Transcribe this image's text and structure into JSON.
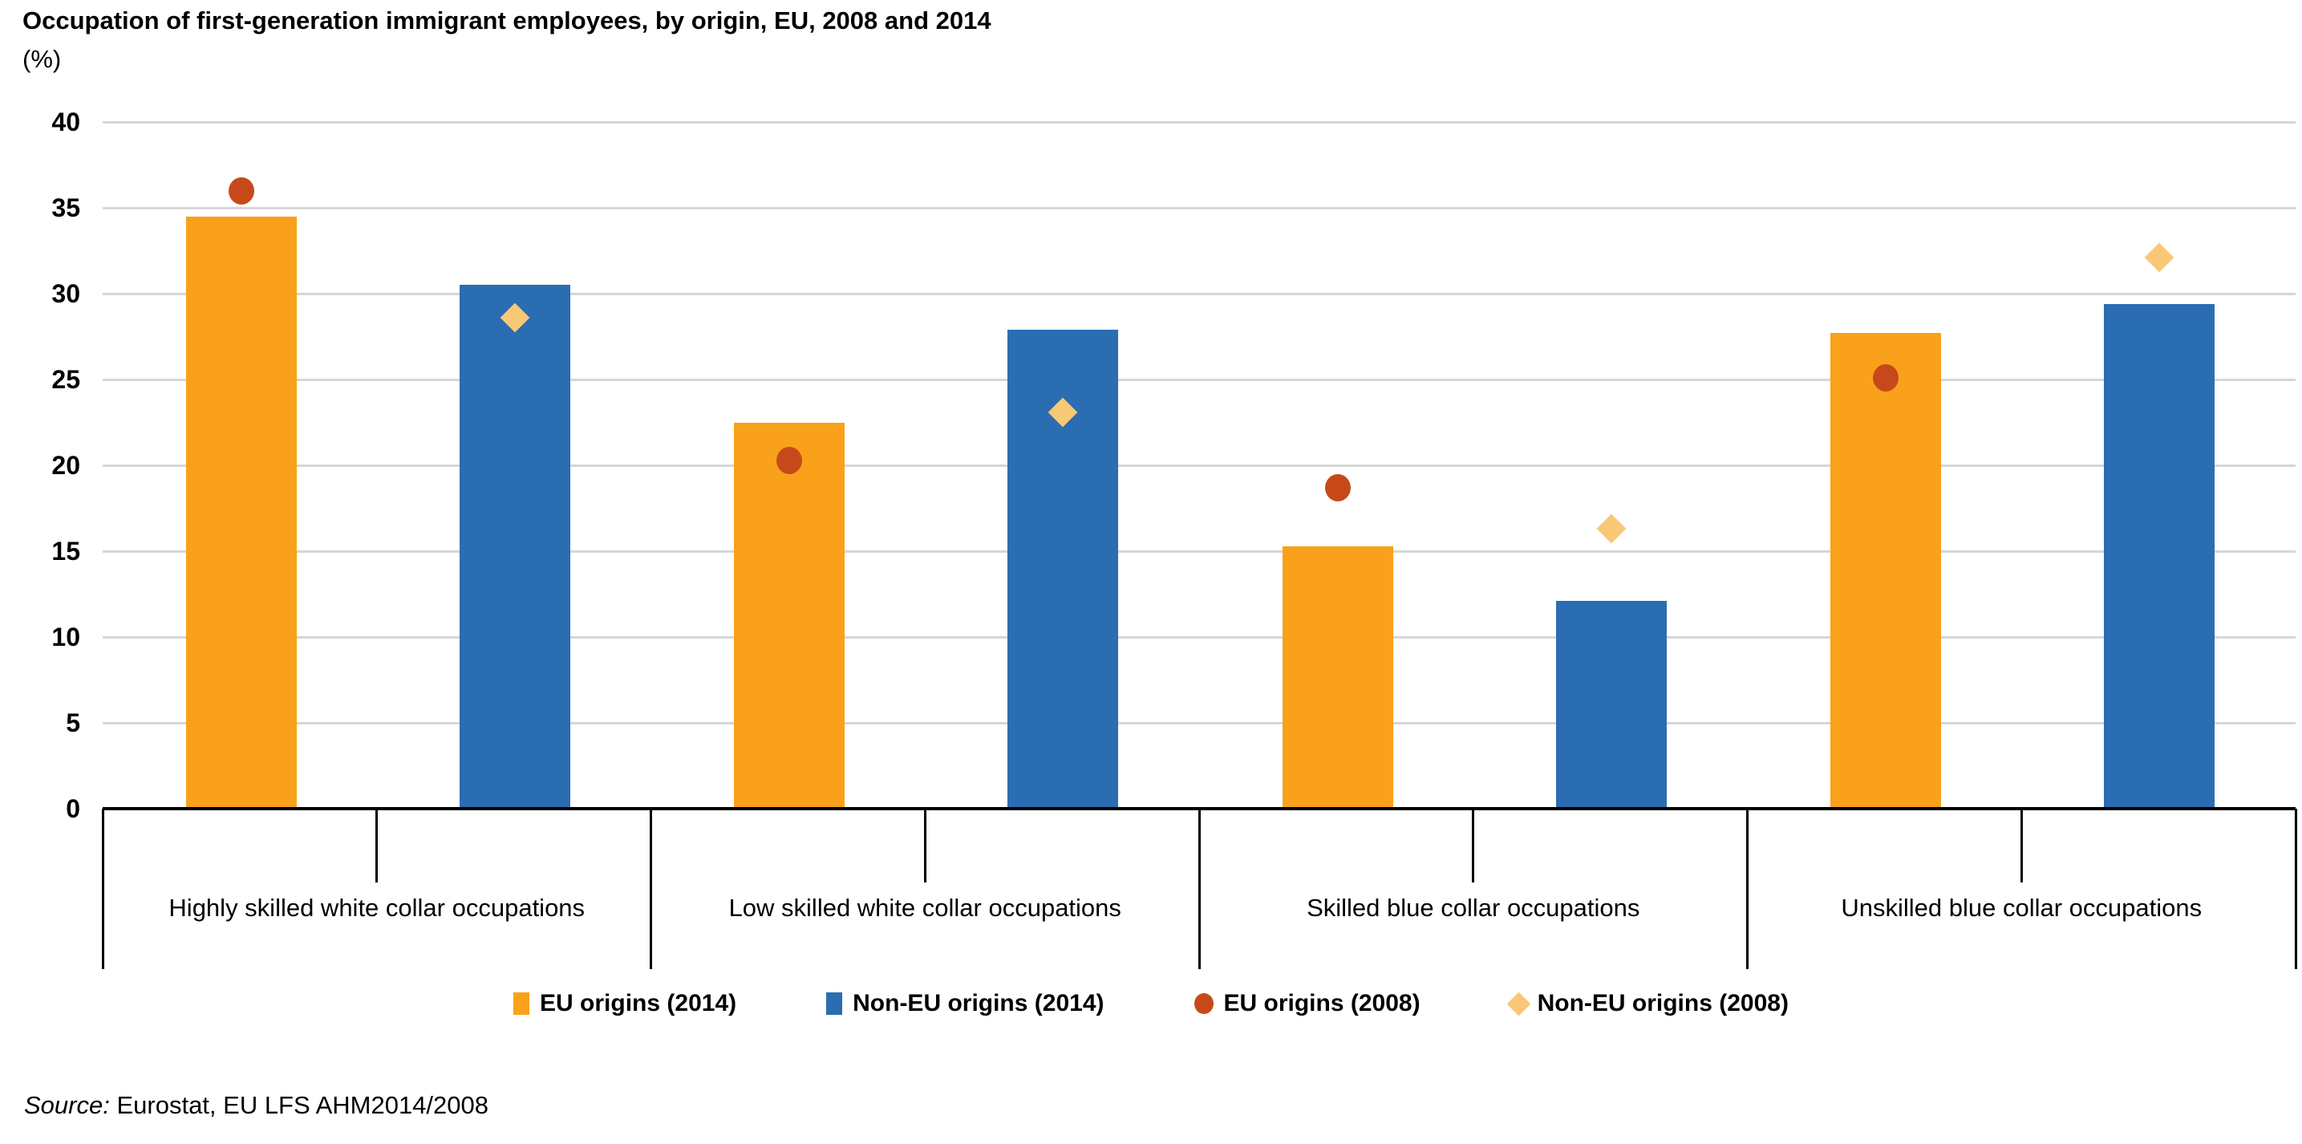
{
  "title": "Occupation of first-generation immigrant employees, by origin, EU, 2008 and 2014",
  "unit_label": "(%)",
  "chart_data": {
    "type": "bar",
    "categories": [
      "Highly skilled white collar occupations",
      "Low skilled white collar occupations",
      "Skilled blue collar occupations",
      "Unskilled blue collar occupations"
    ],
    "series": [
      {
        "name": "EU origins (2014)",
        "render": "bar",
        "marker": "square",
        "color": "#F9A11B",
        "values": [
          34.5,
          22.5,
          15.3,
          27.7
        ]
      },
      {
        "name": "Non-EU origins (2014)",
        "render": "bar",
        "marker": "square",
        "color": "#2B6DB2",
        "values": [
          30.5,
          27.9,
          12.1,
          29.4
        ]
      },
      {
        "name": "EU origins (2008)",
        "render": "point",
        "marker": "circle",
        "color": "#C7491A",
        "values": [
          36.0,
          20.3,
          18.7,
          25.1
        ]
      },
      {
        "name": "Non-EU origins (2008)",
        "render": "point",
        "marker": "diamond",
        "color": "#F9C877",
        "values": [
          28.6,
          23.1,
          16.3,
          32.1
        ]
      }
    ],
    "ylim": [
      0,
      40
    ],
    "yticks": [
      0,
      5,
      10,
      15,
      20,
      25,
      30,
      35,
      40
    ],
    "xlabel": "",
    "ylabel": "",
    "grid": true,
    "legend_position": "bottom"
  },
  "colors": {
    "gridline": "#D6D6D6",
    "axis": "#000000",
    "background": "#FFFFFF",
    "text": "#000000"
  },
  "source": {
    "label": "Source:",
    "text": "Eurostat, EU LFS AHM2014/2008"
  }
}
